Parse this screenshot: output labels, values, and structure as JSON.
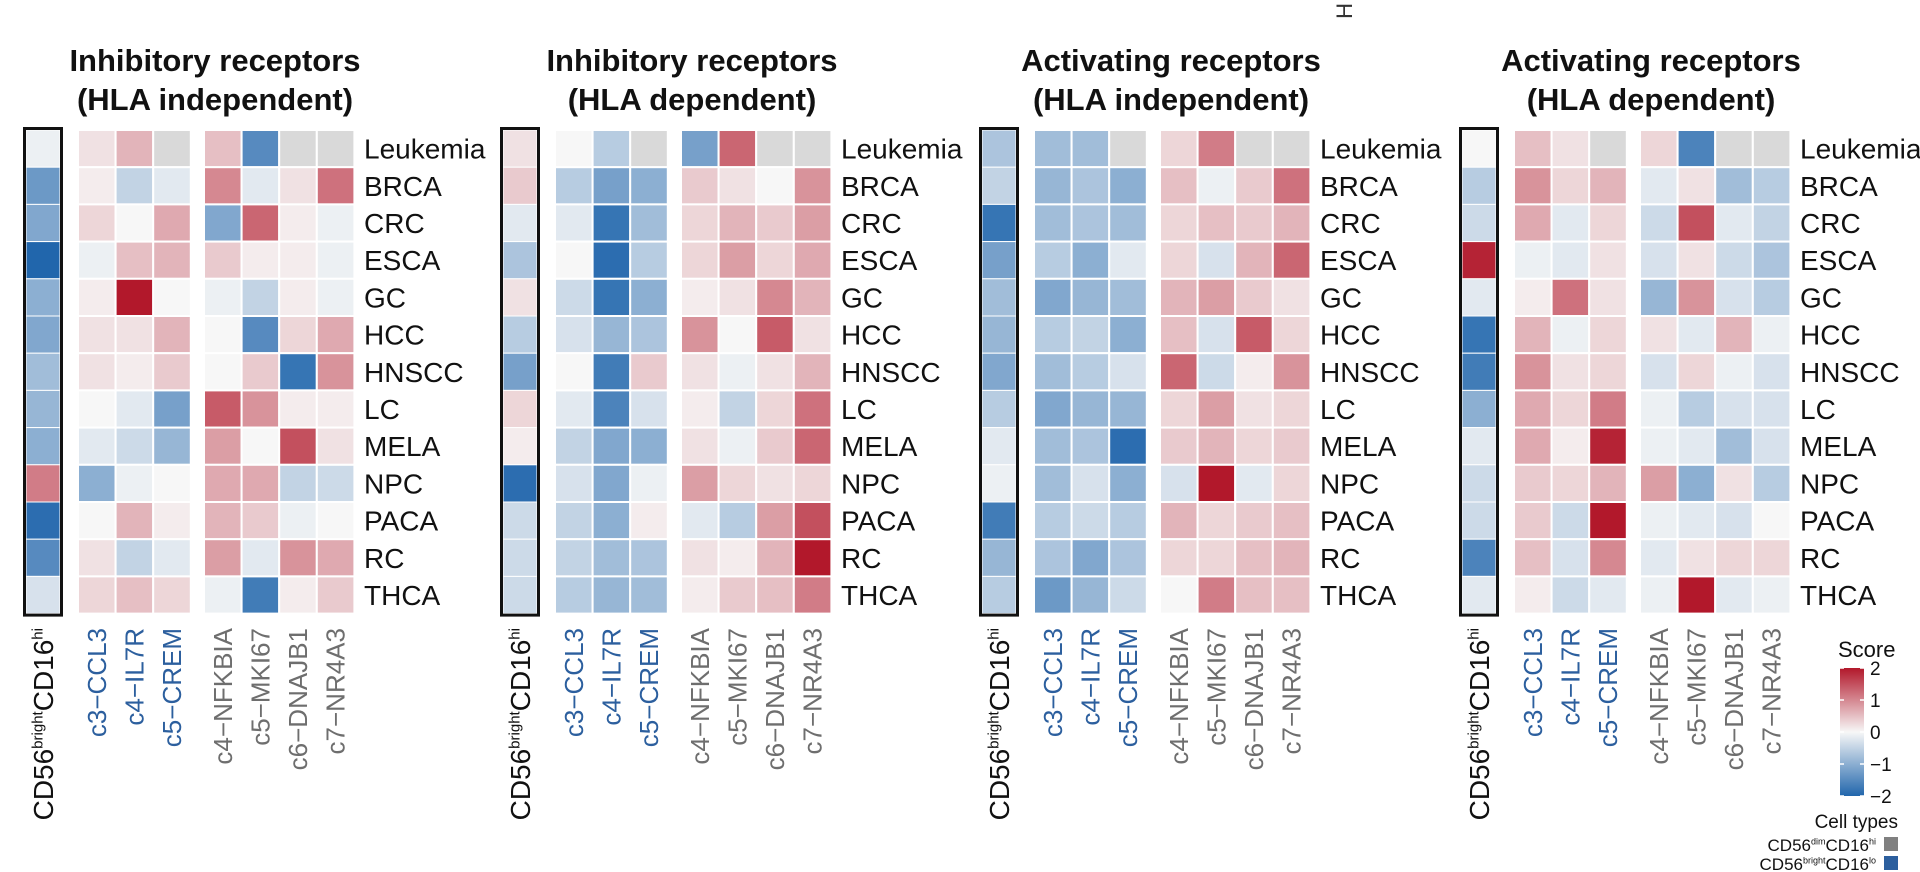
{
  "top_clip_text": "H",
  "chart_data": {
    "type": "heatmap",
    "row_labels": [
      "Leukemia",
      "BRCA",
      "CRC",
      "ESCA",
      "GC",
      "HCC",
      "HNSCC",
      "LC",
      "MELA",
      "NPC",
      "PACA",
      "RC",
      "THCA"
    ],
    "group_label": {
      "prefix": "CD56",
      "sup1": "bright",
      "mid": "CD16",
      "sup2": "hi"
    },
    "columns_a": [
      "c3−CCL3",
      "c4−IL7R",
      "c5−CREM"
    ],
    "columns_b": [
      "c4−NFKBIA",
      "c5−MKI67",
      "c6−DNAJB1",
      "c7−NR4A3"
    ],
    "value_range": [
      -2,
      2
    ],
    "na_color": "#d9d9d9",
    "colors": {
      "low": "#2166ac",
      "mid": "#f7f7f7",
      "high": "#b2182b",
      "blue_label": "#2c5f9e",
      "grey_label": "#6e6e6e",
      "grey_cell": "#808080"
    },
    "panels": [
      {
        "title_line1": "Inhibitory receptors",
        "title_line2": "(HLA independent)",
        "group_values": [
          -0.1,
          -1.3,
          -1.1,
          -2.0,
          -1.0,
          -1.1,
          -0.8,
          -0.9,
          -1.0,
          1.1,
          -1.9,
          -1.5,
          -0.3
        ],
        "values_a": [
          [
            0.2,
            0.6,
            null
          ],
          [
            0.1,
            -0.5,
            -0.2
          ],
          [
            0.3,
            0.0,
            0.7
          ],
          [
            -0.1,
            0.5,
            0.6
          ],
          [
            0.1,
            2.0,
            0.0
          ],
          [
            0.2,
            0.2,
            0.6
          ],
          [
            0.2,
            0.1,
            0.4
          ],
          [
            0.0,
            -0.2,
            -1.2
          ],
          [
            -0.2,
            -0.4,
            -0.9
          ],
          [
            -1.0,
            -0.1,
            0.0
          ],
          [
            0.0,
            0.6,
            0.1
          ],
          [
            0.2,
            -0.5,
            -0.2
          ],
          [
            0.3,
            0.5,
            0.3
          ]
        ],
        "values_b": [
          [
            0.5,
            -1.5,
            null,
            null
          ],
          [
            1.0,
            -0.2,
            0.2,
            1.2
          ],
          [
            -1.1,
            1.3,
            0.1,
            -0.1
          ],
          [
            0.4,
            0.1,
            0.1,
            -0.1
          ],
          [
            -0.1,
            -0.5,
            0.1,
            -0.1
          ],
          [
            0.0,
            -1.5,
            0.3,
            0.7
          ],
          [
            0.0,
            0.4,
            -1.8,
            0.9
          ],
          [
            1.4,
            0.9,
            0.1,
            0.1
          ],
          [
            0.8,
            0.0,
            1.5,
            0.2
          ],
          [
            0.7,
            0.7,
            -0.5,
            -0.4
          ],
          [
            0.6,
            0.4,
            -0.1,
            0.0
          ],
          [
            0.8,
            -0.2,
            0.9,
            0.7
          ],
          [
            -0.1,
            -1.7,
            0.1,
            0.4
          ]
        ]
      },
      {
        "title_line1": "Inhibitory receptors",
        "title_line2": "(HLA dependent)",
        "group_values": [
          0.2,
          0.4,
          -0.2,
          -0.7,
          0.2,
          -0.6,
          -1.2,
          0.3,
          0.1,
          -1.9,
          -0.4,
          -0.4,
          -0.4
        ],
        "values_a": [
          [
            0.0,
            -0.6,
            null
          ],
          [
            -0.6,
            -1.2,
            -1.0
          ],
          [
            -0.2,
            -1.8,
            -0.8
          ],
          [
            0.0,
            -1.9,
            -0.6
          ],
          [
            -0.4,
            -1.8,
            -1.0
          ],
          [
            -0.3,
            -0.9,
            -0.7
          ],
          [
            0.0,
            -1.7,
            0.4
          ],
          [
            -0.2,
            -1.6,
            -0.3
          ],
          [
            -0.5,
            -1.1,
            -1.0
          ],
          [
            -0.3,
            -1.1,
            -0.1
          ],
          [
            -0.5,
            -1.0,
            0.1
          ],
          [
            -0.5,
            -0.8,
            -0.7
          ],
          [
            -0.6,
            -0.9,
            -0.8
          ]
        ],
        "values_b": [
          [
            -1.2,
            1.3,
            null,
            null
          ],
          [
            0.4,
            0.2,
            0.0,
            0.9
          ],
          [
            0.3,
            0.6,
            0.4,
            0.8
          ],
          [
            0.3,
            0.8,
            0.3,
            0.7
          ],
          [
            0.1,
            0.2,
            1.0,
            0.6
          ],
          [
            0.9,
            0.0,
            1.4,
            0.2
          ],
          [
            0.2,
            -0.1,
            0.2,
            0.6
          ],
          [
            0.1,
            -0.5,
            0.3,
            1.2
          ],
          [
            0.2,
            -0.1,
            0.4,
            1.3
          ],
          [
            0.8,
            0.3,
            0.2,
            0.3
          ],
          [
            -0.2,
            -0.6,
            0.8,
            1.5
          ],
          [
            0.2,
            0.1,
            0.6,
            2.0
          ],
          [
            0.1,
            0.4,
            0.5,
            1.1
          ]
        ]
      },
      {
        "title_line1": "Activating receptors",
        "title_line2": "(HLA independent)",
        "group_values": [
          -0.7,
          -0.5,
          -1.8,
          -1.2,
          -0.8,
          -0.9,
          -1.1,
          -0.6,
          -0.2,
          -0.1,
          -1.7,
          -0.9,
          -0.6
        ],
        "values_a": [
          [
            -0.8,
            -0.8,
            null
          ],
          [
            -0.9,
            -0.7,
            -1.0
          ],
          [
            -0.8,
            -0.7,
            -0.8
          ],
          [
            -0.6,
            -1.0,
            -0.2
          ],
          [
            -1.1,
            -0.9,
            -0.8
          ],
          [
            -0.6,
            -0.5,
            -1.0
          ],
          [
            -0.8,
            -0.6,
            -0.3
          ],
          [
            -1.1,
            -0.9,
            -0.9
          ],
          [
            -0.8,
            -0.7,
            -1.9
          ],
          [
            -0.8,
            -0.3,
            -1.0
          ],
          [
            -0.6,
            -0.4,
            -0.6
          ],
          [
            -0.7,
            -1.1,
            -0.7
          ],
          [
            -1.3,
            -0.9,
            -0.4
          ]
        ],
        "values_b": [
          [
            0.3,
            1.1,
            null,
            null
          ],
          [
            0.5,
            -0.1,
            0.4,
            1.2
          ],
          [
            0.3,
            0.5,
            0.4,
            0.6
          ],
          [
            0.3,
            -0.3,
            0.6,
            1.3
          ],
          [
            0.6,
            0.8,
            0.4,
            0.2
          ],
          [
            0.5,
            -0.3,
            1.4,
            0.3
          ],
          [
            1.3,
            -0.4,
            0.1,
            0.9
          ],
          [
            0.3,
            0.8,
            0.2,
            0.3
          ],
          [
            0.4,
            0.6,
            0.3,
            0.4
          ],
          [
            -0.3,
            2.0,
            -0.2,
            0.3
          ],
          [
            0.6,
            0.3,
            0.4,
            0.5
          ],
          [
            0.3,
            0.3,
            0.5,
            0.6
          ],
          [
            0.0,
            1.1,
            0.5,
            0.5
          ]
        ]
      },
      {
        "title_line1": "Activating receptors",
        "title_line2": "(HLA dependent)",
        "group_values": [
          0.0,
          -0.6,
          -0.4,
          1.9,
          -0.2,
          -1.8,
          -1.7,
          -1.0,
          -0.2,
          -0.4,
          -0.4,
          -1.6,
          -0.2
        ],
        "values_a": [
          [
            0.5,
            0.2,
            null
          ],
          [
            0.9,
            0.3,
            0.6
          ],
          [
            0.7,
            -0.2,
            0.3
          ],
          [
            -0.1,
            -0.2,
            0.2
          ],
          [
            0.1,
            1.2,
            0.2
          ],
          [
            0.6,
            -0.1,
            0.3
          ],
          [
            0.9,
            0.2,
            0.3
          ],
          [
            0.7,
            0.3,
            1.1
          ],
          [
            0.7,
            0.1,
            1.9
          ],
          [
            0.4,
            0.3,
            0.6
          ],
          [
            0.4,
            -0.4,
            2.0
          ],
          [
            0.5,
            -0.3,
            1.0
          ],
          [
            0.1,
            -0.4,
            -0.2
          ]
        ],
        "values_b": [
          [
            0.3,
            -1.6,
            null,
            null
          ],
          [
            -0.2,
            0.2,
            -0.8,
            -0.6
          ],
          [
            -0.4,
            1.5,
            -0.2,
            -0.5
          ],
          [
            -0.3,
            0.2,
            -0.4,
            -0.7
          ],
          [
            -0.9,
            0.9,
            -0.3,
            -0.6
          ],
          [
            0.2,
            -0.2,
            0.6,
            -0.1
          ],
          [
            -0.3,
            0.3,
            -0.1,
            -0.3
          ],
          [
            -0.1,
            -0.6,
            -0.3,
            -0.3
          ],
          [
            -0.1,
            -0.2,
            -0.8,
            -0.3
          ],
          [
            0.8,
            -1.0,
            0.2,
            -0.6
          ],
          [
            -0.1,
            -0.2,
            -0.3,
            0.0
          ],
          [
            -0.2,
            0.2,
            0.3,
            0.3
          ],
          [
            -0.1,
            2.0,
            -0.2,
            -0.1
          ]
        ]
      }
    ],
    "legend": {
      "title": "Score",
      "ticks": [
        "2",
        "1",
        "0",
        "−1",
        "−2"
      ],
      "tick_values": [
        2,
        1,
        0,
        -1,
        -2
      ],
      "cell_types_title": "Cell types",
      "cell_types": [
        {
          "prefix": "CD56",
          "sup1": "dim",
          "mid": "CD16",
          "sup2": "hi",
          "color": "#808080"
        },
        {
          "prefix": "CD56",
          "sup1": "bright",
          "mid": "CD16",
          "sup2": "lo",
          "color": "#2c5f9e"
        }
      ]
    }
  }
}
